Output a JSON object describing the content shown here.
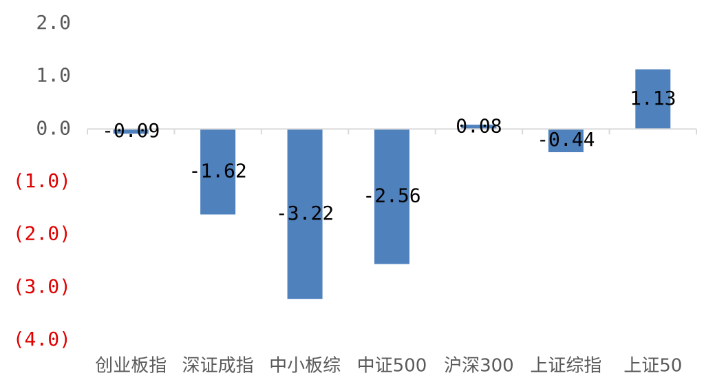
{
  "chart_data": {
    "type": "bar",
    "categories": [
      "创业板指",
      "深证成指",
      "中小板综",
      "中证500",
      "沪深300",
      "上证综指",
      "上证50"
    ],
    "values": [
      -0.09,
      -1.62,
      -3.22,
      -2.56,
      0.08,
      -0.44,
      1.13
    ],
    "data_labels": [
      "-0.09",
      "-1.62",
      "-3.22",
      "-2.56",
      "0.08",
      "-0.44",
      "1.13"
    ],
    "y_ticks": [
      2.0,
      1.0,
      0.0,
      -1.0,
      -2.0,
      -3.0,
      -4.0
    ],
    "y_tick_labels": [
      "2.0",
      "1.0",
      "0.0",
      "(1.0)",
      "(2.0)",
      "(3.0)",
      "(4.0)"
    ],
    "ylim": [
      -4.0,
      2.0
    ],
    "title": "",
    "xlabel": "",
    "ylabel": "",
    "grid": false,
    "legend": "none",
    "colors": {
      "bar": "#4f81bd",
      "positive_tick": "#595959",
      "negative_tick": "#e00000",
      "axis": "#d9d9d9"
    }
  }
}
